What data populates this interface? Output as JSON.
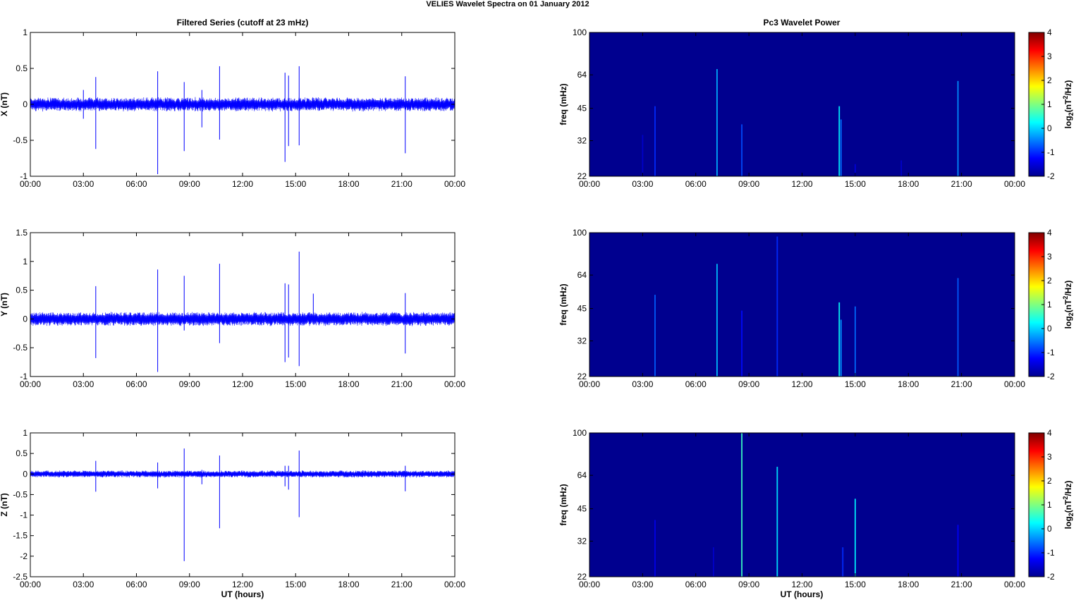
{
  "figure": {
    "title": "VELIES Wavelet Spectra on 01 January   2012",
    "left_title": "Filtered Series (cutoff at 23 mHz)",
    "right_title": "Pc3 Wavelet Power",
    "xlabel": "UT (hours)"
  },
  "colors": {
    "series_line": "#0000ff",
    "spectrogram_background": "#00008f",
    "jet_colormap": [
      "#00008f",
      "#0000ff",
      "#00ffff",
      "#ffff00",
      "#ff0000",
      "#800000"
    ]
  },
  "chart_data": [
    {
      "type": "line",
      "name": "X",
      "ylabel": "X (nT)",
      "ylim": [
        -1,
        1
      ],
      "yticks": [
        "1",
        "0.5",
        "0",
        "-0.5",
        "-1"
      ],
      "xlim": [
        0,
        24
      ],
      "xticks": [
        "00:00",
        "03:00",
        "06:00",
        "09:00",
        "12:00",
        "15:00",
        "18:00",
        "21:00",
        "00:00"
      ],
      "noise_amplitude": 0.08,
      "spikes": [
        {
          "t": 3.0,
          "up": 0.2,
          "down": -0.2
        },
        {
          "t": 3.7,
          "up": 0.38,
          "down": -0.62
        },
        {
          "t": 7.2,
          "up": 0.46,
          "down": -0.97
        },
        {
          "t": 8.7,
          "up": 0.31,
          "down": -0.65
        },
        {
          "t": 9.7,
          "up": 0.2,
          "down": -0.32
        },
        {
          "t": 10.7,
          "up": 0.53,
          "down": -0.49
        },
        {
          "t": 14.4,
          "up": 0.44,
          "down": -0.8
        },
        {
          "t": 14.6,
          "up": 0.4,
          "down": -0.58
        },
        {
          "t": 15.2,
          "up": 0.53,
          "down": -0.57
        },
        {
          "t": 21.2,
          "up": 0.39,
          "down": -0.68
        }
      ]
    },
    {
      "type": "line",
      "name": "Y",
      "ylabel": "Y (nT)",
      "ylim": [
        -1,
        1.5
      ],
      "yticks": [
        "1.5",
        "1",
        "0.5",
        "0",
        "-0.5",
        "-1"
      ],
      "xlim": [
        0,
        24
      ],
      "xticks": [
        "00:00",
        "03:00",
        "06:00",
        "09:00",
        "12:00",
        "15:00",
        "18:00",
        "21:00",
        "00:00"
      ],
      "noise_amplitude": 0.1,
      "spikes": [
        {
          "t": 3.7,
          "up": 0.57,
          "down": -0.68
        },
        {
          "t": 7.2,
          "up": 0.86,
          "down": -0.92
        },
        {
          "t": 8.7,
          "up": 0.75,
          "down": -0.2
        },
        {
          "t": 10.7,
          "up": 0.96,
          "down": -0.42
        },
        {
          "t": 14.4,
          "up": 0.62,
          "down": -0.75
        },
        {
          "t": 14.6,
          "up": 0.6,
          "down": -0.67
        },
        {
          "t": 15.2,
          "up": 1.17,
          "down": -0.82
        },
        {
          "t": 16.0,
          "up": 0.44,
          "down": -0.1
        },
        {
          "t": 21.2,
          "up": 0.45,
          "down": -0.6
        }
      ]
    },
    {
      "type": "line",
      "name": "Z",
      "ylabel": "Z (nT)",
      "ylim": [
        -2.5,
        1
      ],
      "yticks": [
        "1",
        "0.5",
        "0",
        "-0.5",
        "-1",
        "-1.5",
        "-2",
        "-2.5"
      ],
      "xlim": [
        0,
        24
      ],
      "xticks": [
        "00:00",
        "03:00",
        "06:00",
        "09:00",
        "12:00",
        "15:00",
        "18:00",
        "21:00",
        "00:00"
      ],
      "noise_amplitude": 0.07,
      "spikes": [
        {
          "t": 3.7,
          "up": 0.32,
          "down": -0.43
        },
        {
          "t": 7.2,
          "up": 0.28,
          "down": -0.35
        },
        {
          "t": 8.7,
          "up": 0.62,
          "down": -2.12
        },
        {
          "t": 9.7,
          "up": 0.1,
          "down": -0.25
        },
        {
          "t": 10.7,
          "up": 0.45,
          "down": -1.32
        },
        {
          "t": 14.4,
          "up": 0.2,
          "down": -0.3
        },
        {
          "t": 14.6,
          "up": 0.2,
          "down": -0.38
        },
        {
          "t": 15.2,
          "up": 0.57,
          "down": -1.05
        },
        {
          "t": 21.2,
          "up": 0.2,
          "down": -0.42
        }
      ]
    },
    {
      "type": "heatmap",
      "name": "X power",
      "ylabel": "freq (mHz)",
      "yticks": [
        100,
        64,
        45,
        32,
        22
      ],
      "ylim": [
        22,
        100
      ],
      "xlim": [
        0,
        24
      ],
      "xticks": [
        "00:00",
        "03:00",
        "06:00",
        "09:00",
        "12:00",
        "15:00",
        "18:00",
        "21:00",
        "00:00"
      ],
      "clim": [
        -2,
        4
      ],
      "colorbar_label_base": "log",
      "colorbar_label_sub": "2",
      "colorbar_label_mid": "(nT",
      "colorbar_label_sup": "2",
      "colorbar_label_end": "/Hz)",
      "colorbar_ticks": [
        "4",
        "3",
        "2",
        "1",
        "0",
        "-1",
        "-2"
      ],
      "bursts": [
        {
          "t": 3.0,
          "fmax": 34,
          "level": -1.6
        },
        {
          "t": 3.7,
          "fmax": 46,
          "level": -1.0
        },
        {
          "t": 7.2,
          "fmax": 68,
          "level": -0.2
        },
        {
          "t": 8.6,
          "fmax": 38,
          "level": -0.8
        },
        {
          "t": 14.1,
          "fmax": 46,
          "level": 0.2
        },
        {
          "t": 14.2,
          "fmax": 40,
          "level": -0.6
        },
        {
          "t": 15.0,
          "fmax": 25,
          "level": -1.5
        },
        {
          "t": 17.6,
          "fmax": 26,
          "level": -1.6
        },
        {
          "t": 20.8,
          "fmax": 60,
          "level": -0.4
        }
      ]
    },
    {
      "type": "heatmap",
      "name": "Y power",
      "ylabel": "freq (mHz)",
      "yticks": [
        100,
        64,
        45,
        32,
        22
      ],
      "ylim": [
        22,
        100
      ],
      "xlim": [
        0,
        24
      ],
      "xticks": [
        "00:00",
        "03:00",
        "06:00",
        "09:00",
        "12:00",
        "15:00",
        "18:00",
        "21:00",
        "00:00"
      ],
      "clim": [
        -2,
        4
      ],
      "colorbar_ticks": [
        "4",
        "3",
        "2",
        "1",
        "0",
        "-1",
        "-2"
      ],
      "bursts": [
        {
          "t": 3.7,
          "fmax": 52,
          "level": -0.7
        },
        {
          "t": 7.2,
          "fmax": 72,
          "level": -0.1
        },
        {
          "t": 8.6,
          "fmax": 44,
          "level": -1.2
        },
        {
          "t": 10.6,
          "fmax": 96,
          "level": -1.0
        },
        {
          "t": 14.1,
          "fmax": 48,
          "level": 0.3
        },
        {
          "t": 14.2,
          "fmax": 40,
          "level": -0.4
        },
        {
          "t": 15.0,
          "fmax": 46,
          "level": -0.6
        },
        {
          "t": 20.8,
          "fmax": 62,
          "level": -0.7
        }
      ]
    },
    {
      "type": "heatmap",
      "name": "Z power",
      "ylabel": "freq (mHz)",
      "yticks": [
        100,
        64,
        45,
        32,
        22
      ],
      "ylim": [
        22,
        100
      ],
      "xlim": [
        0,
        24
      ],
      "xticks": [
        "00:00",
        "03:00",
        "06:00",
        "09:00",
        "12:00",
        "15:00",
        "18:00",
        "21:00",
        "00:00"
      ],
      "clim": [
        -2,
        4
      ],
      "colorbar_ticks": [
        "4",
        "3",
        "2",
        "1",
        "0",
        "-1",
        "-2"
      ],
      "bursts": [
        {
          "t": 3.7,
          "fmax": 40,
          "level": -1.4
        },
        {
          "t": 7.0,
          "fmax": 30,
          "level": -1.6
        },
        {
          "t": 8.6,
          "fmax": 100,
          "level": 0.6
        },
        {
          "t": 10.6,
          "fmax": 70,
          "level": 0.1
        },
        {
          "t": 14.3,
          "fmax": 30,
          "level": -1.0
        },
        {
          "t": 15.0,
          "fmax": 50,
          "level": 0.2
        },
        {
          "t": 20.8,
          "fmax": 38,
          "level": -1.3
        }
      ]
    }
  ]
}
